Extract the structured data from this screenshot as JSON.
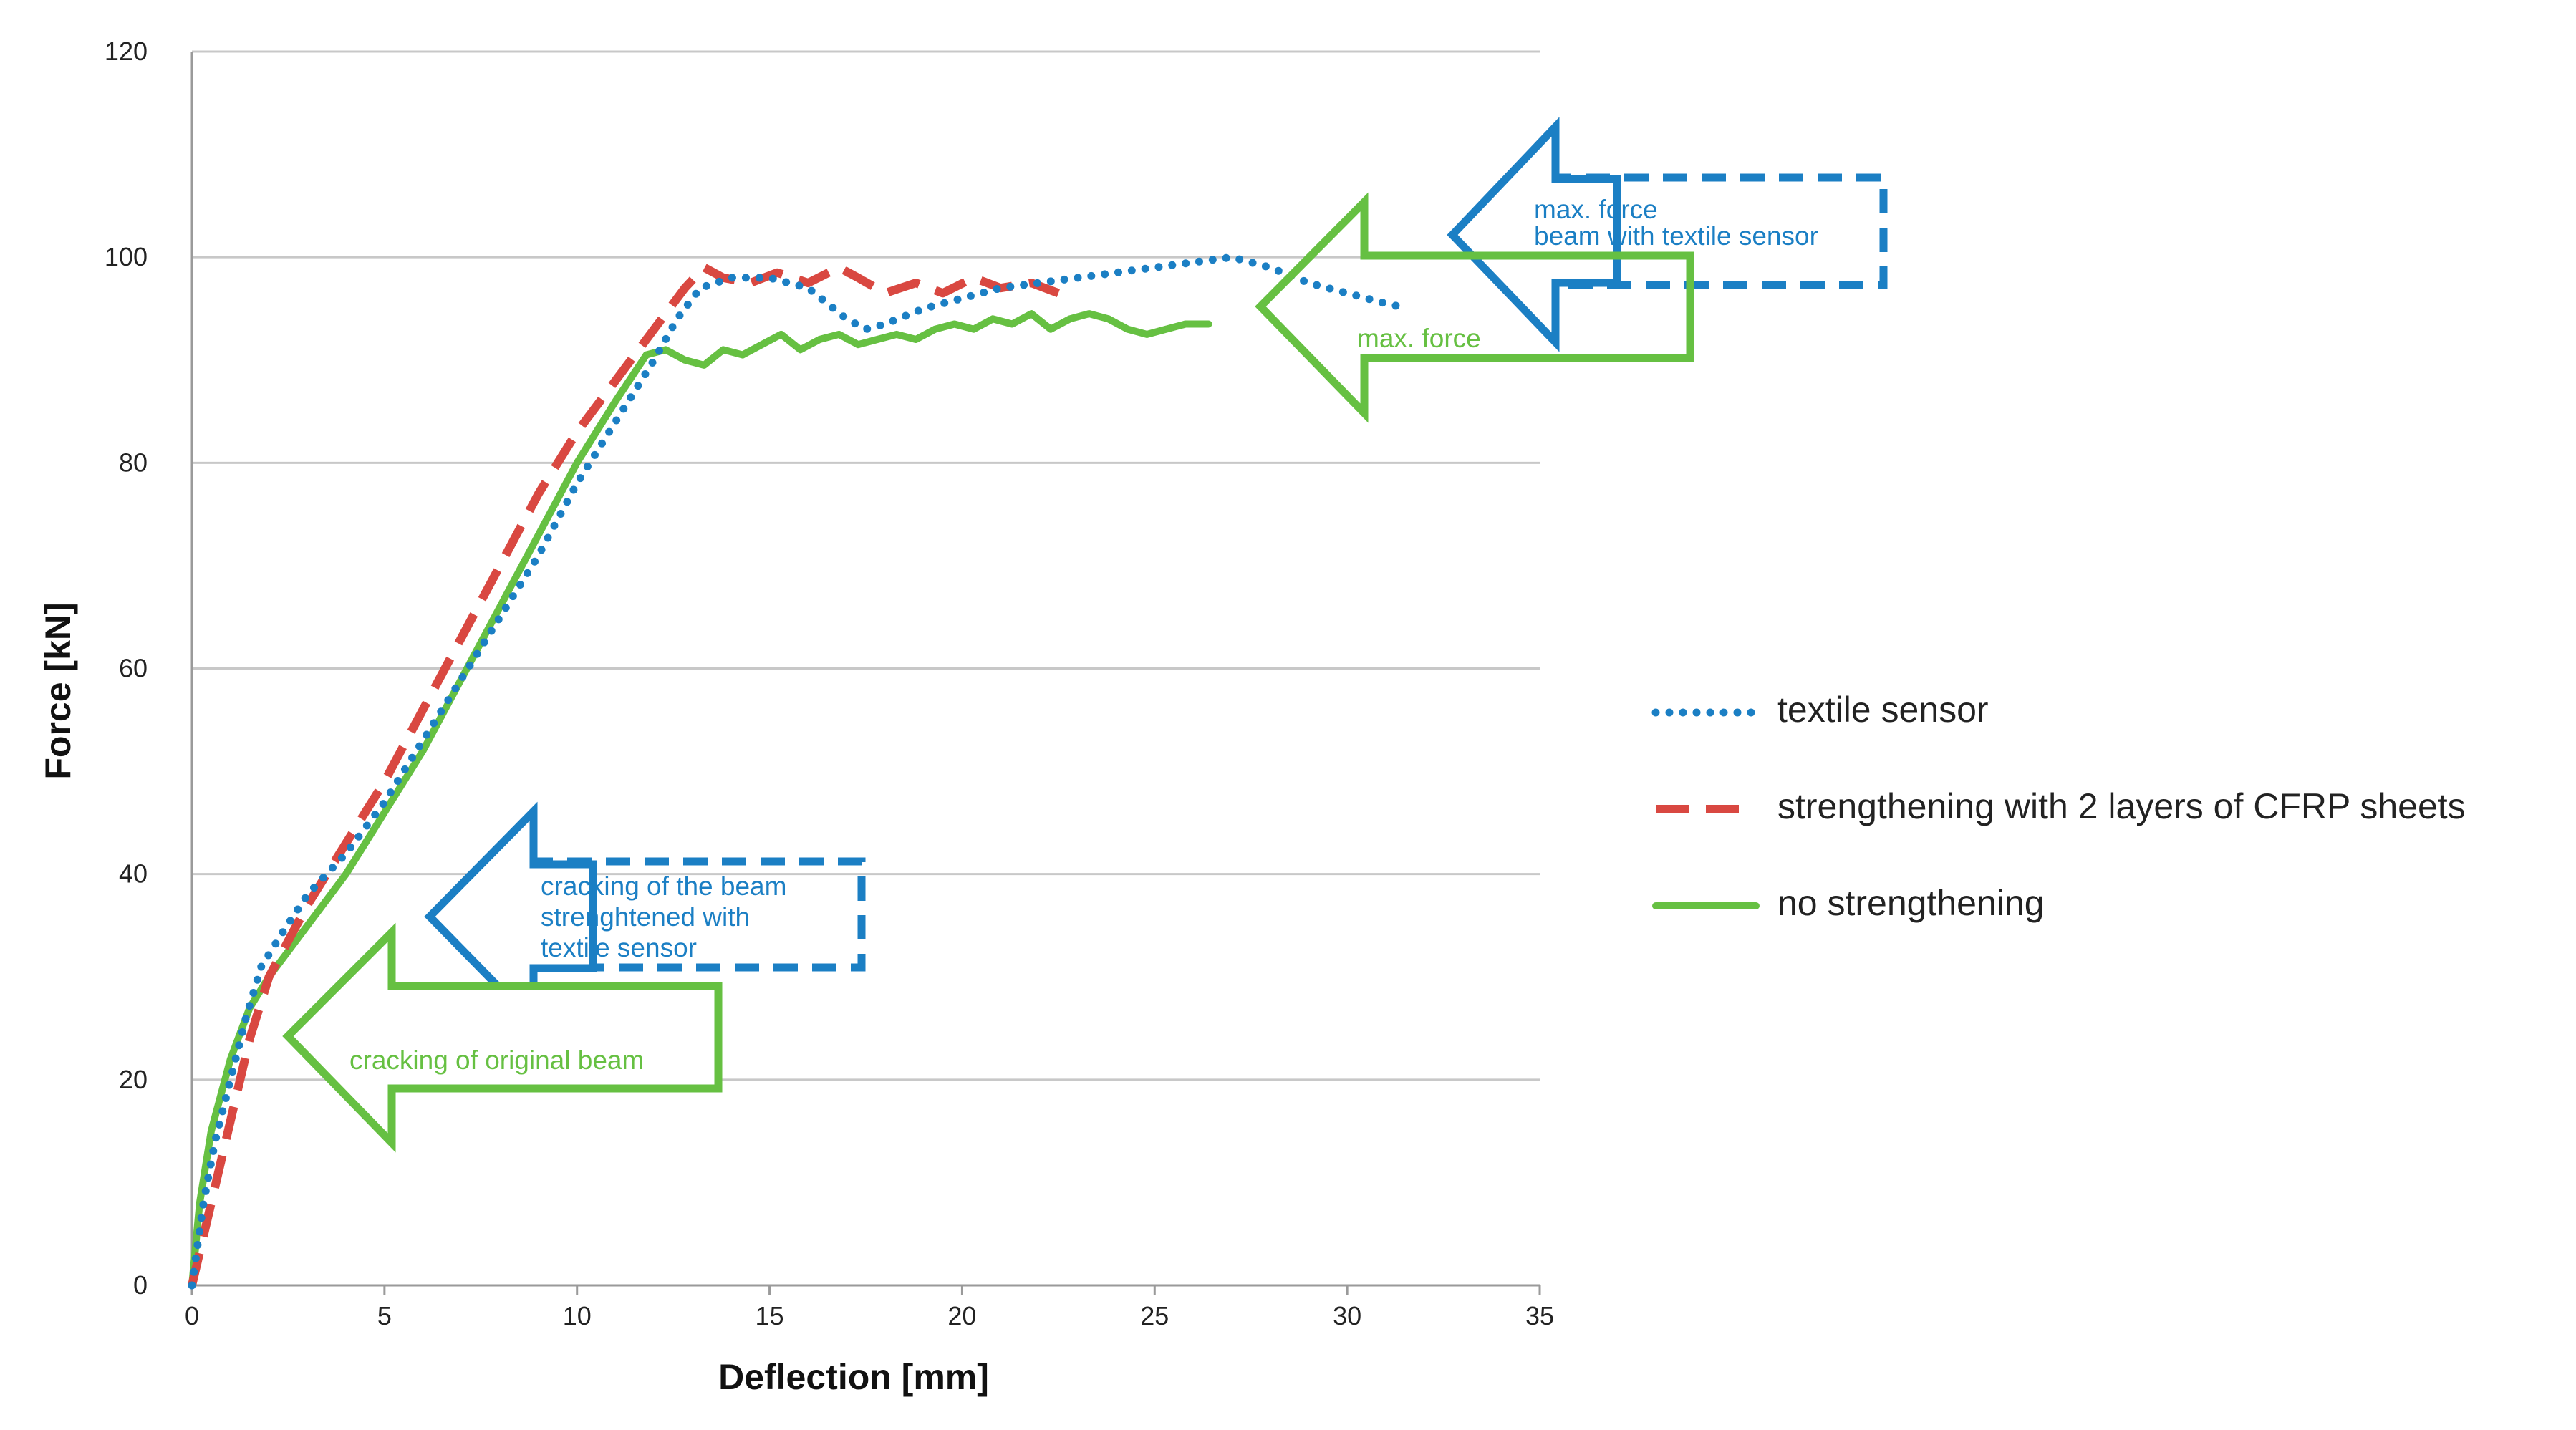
{
  "chart_data": {
    "type": "line",
    "title": "",
    "xlabel": "Deflection [mm]",
    "ylabel": "Force [kN]",
    "xlim": [
      0,
      35
    ],
    "ylim": [
      0,
      120
    ],
    "xticks": [
      "0",
      "5",
      "10",
      "15",
      "20",
      "25",
      "30",
      "35"
    ],
    "yticks": [
      "0",
      "20",
      "40",
      "60",
      "80",
      "100",
      "120"
    ],
    "grid": "horizontal",
    "legend_position": "right",
    "series": [
      {
        "name": "textile sensor",
        "style": "dotted",
        "color": "#1b7fc4",
        "x": [
          0,
          0.3,
          0.6,
          1.0,
          1.4,
          1.8,
          2.3,
          3.0,
          4.0,
          5.0,
          6.0,
          7.0,
          8.0,
          9.0,
          10.0,
          11.0,
          12.0,
          12.6,
          13.2,
          14.0,
          15.0,
          16.0,
          17.0,
          17.5,
          18.0,
          19.0,
          20.0,
          21.0,
          22.0,
          23.0,
          24.0,
          25.0,
          26.0,
          27.0,
          28.0,
          29.0,
          30.0,
          31.0,
          31.6
        ],
        "y": [
          0,
          8,
          14,
          20,
          26,
          31,
          34,
          38,
          42,
          47,
          53,
          59,
          65,
          71,
          78,
          84,
          90,
          94,
          97,
          98,
          98,
          97,
          94,
          93,
          93.5,
          95,
          96,
          97,
          97.5,
          98,
          98.5,
          99,
          99.5,
          100,
          99,
          97.5,
          96.5,
          95.5,
          95
        ]
      },
      {
        "name": "strengthening with 2 layers of CFRP sheets",
        "style": "dashed",
        "color": "#d94841",
        "x": [
          0,
          0.5,
          1.0,
          1.5,
          2.0,
          3.0,
          4.0,
          5.0,
          6.0,
          7.0,
          8.0,
          9.0,
          10.0,
          11.0,
          12.0,
          12.8,
          13.3,
          13.8,
          14.5,
          15.2,
          16.0,
          16.8,
          17.3,
          18.0,
          18.8,
          19.5,
          20.3,
          21.0,
          21.8,
          22.5
        ],
        "y": [
          0,
          8,
          16,
          24,
          30,
          37,
          43,
          49,
          56,
          63,
          70,
          77,
          83,
          88,
          93,
          97,
          99,
          98,
          97.5,
          98.5,
          97.5,
          99,
          98,
          96.5,
          97.5,
          96.5,
          98,
          97,
          97.5,
          96.5
        ]
      },
      {
        "name": "no strengthening",
        "style": "solid",
        "color": "#66c042",
        "x": [
          0,
          0.2,
          0.5,
          1.0,
          1.5,
          2.0,
          3.0,
          4.0,
          5.0,
          6.0,
          7.0,
          8.0,
          9.0,
          10.0,
          11.0,
          11.8,
          12.3,
          12.8,
          13.3,
          13.8,
          14.3,
          14.8,
          15.3,
          15.8,
          16.3,
          16.8,
          17.3,
          17.8,
          18.3,
          18.8,
          19.3,
          19.8,
          20.3,
          20.8,
          21.3,
          21.8,
          22.3,
          22.8,
          23.3,
          23.8,
          24.3,
          24.8,
          25.3,
          25.8,
          26.4
        ],
        "y": [
          0,
          8,
          15,
          22,
          27,
          30,
          35,
          40,
          46,
          52,
          59,
          66,
          73,
          80,
          86,
          90.5,
          91,
          90,
          89.5,
          91,
          90.5,
          91.5,
          92.5,
          91,
          92,
          92.5,
          91.5,
          92,
          92.5,
          92,
          93,
          93.5,
          93,
          94,
          93.5,
          94.5,
          93,
          94,
          94.5,
          94,
          93,
          92.5,
          93,
          93.5,
          93.5
        ]
      }
    ],
    "annotations": [
      {
        "id": "max-force-textile",
        "color": "#1b7fc4",
        "lines": [
          "max. force",
          "beam with textile sensor"
        ]
      },
      {
        "id": "max-force",
        "color": "#66c042",
        "lines": [
          "max. force"
        ]
      },
      {
        "id": "cracking-textile",
        "color": "#1b7fc4",
        "lines": [
          "cracking of the beam",
          "strenghtened with",
          "textile sensor"
        ]
      },
      {
        "id": "cracking-original",
        "color": "#66c042",
        "lines": [
          "cracking of original beam"
        ]
      }
    ]
  }
}
